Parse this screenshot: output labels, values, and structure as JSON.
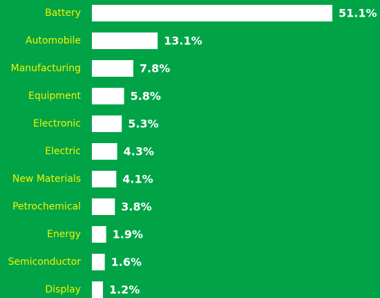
{
  "chart_data": {
    "type": "bar",
    "orientation": "horizontal",
    "categories": [
      "Battery",
      "Automobile",
      "Manufacturing",
      "Equipment",
      "Electronic",
      "Electric",
      "New Materials",
      "Petrochemical",
      "Energy",
      "Semiconductor",
      "Display"
    ],
    "values": [
      51.1,
      13.1,
      7.8,
      5.8,
      5.3,
      4.3,
      4.1,
      3.8,
      1.9,
      1.6,
      1.2
    ],
    "value_labels": [
      "51.1%",
      "13.1%",
      "7.8%",
      "5.8%",
      "5.3%",
      "4.3%",
      "4.1%",
      "3.8%",
      "1.9%",
      "1.6%",
      "1.2%"
    ],
    "color": "#ffffff"
  }
}
